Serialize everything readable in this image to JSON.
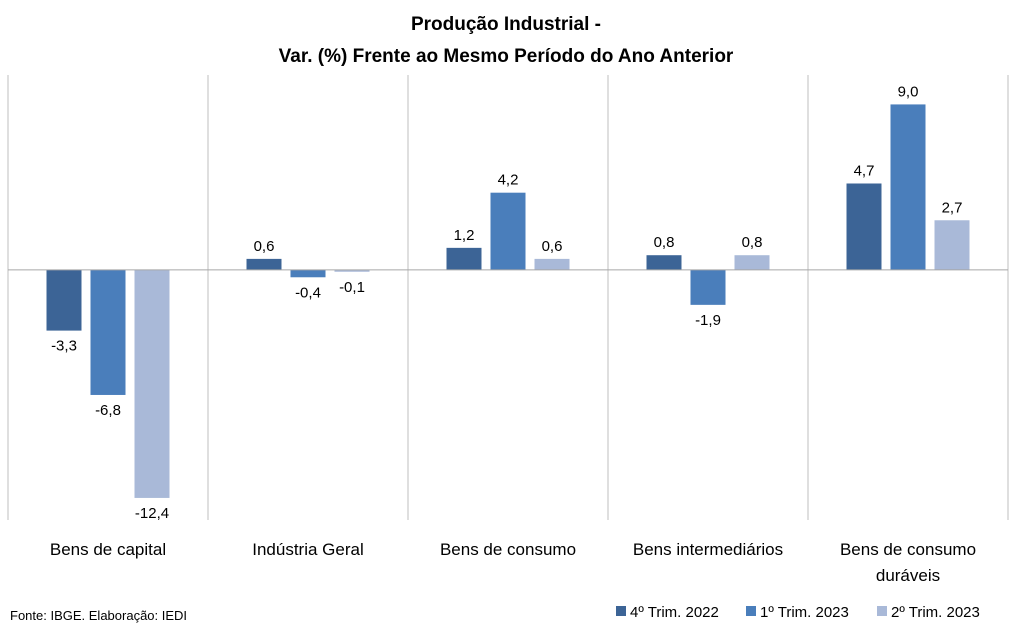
{
  "chart_data": {
    "type": "bar",
    "title_line1": "Produção Industrial -",
    "title_line2": "Var. (%)  Frente ao Mesmo Período do Ano Anterior",
    "categories": [
      [
        "Bens de capital"
      ],
      [
        "Indústria Geral"
      ],
      [
        "Bens de consumo"
      ],
      [
        "Bens intermediários"
      ],
      [
        "Bens de consumo",
        "duráveis"
      ]
    ],
    "series": [
      {
        "name": "4º Trim. 2022",
        "color": "#3C6496",
        "values": [
          -3.3,
          0.6,
          1.2,
          0.8,
          4.7
        ],
        "labels": [
          "-3,3",
          "0,6",
          "1,2",
          "0,8",
          "4,7"
        ]
      },
      {
        "name": "1º Trim. 2023",
        "color": "#4A7EBB",
        "values": [
          -6.8,
          -0.4,
          4.2,
          -1.9,
          9.0
        ],
        "labels": [
          "-6,8",
          "-0,4",
          "4,2",
          "-1,9",
          "9,0"
        ]
      },
      {
        "name": "2º Trim. 2023",
        "color": "#A9B9D8",
        "values": [
          -12.4,
          -0.1,
          0.6,
          0.8,
          2.7
        ],
        "labels": [
          "-12,4",
          "-0,1",
          "0,6",
          "0,8",
          "2,7"
        ]
      }
    ],
    "ylim": [
      -13.6,
      10.6
    ],
    "grid": false,
    "legend_position": "bottom-right"
  },
  "footer": {
    "source": "Fonte: IBGE. Elaboração: IEDI"
  }
}
